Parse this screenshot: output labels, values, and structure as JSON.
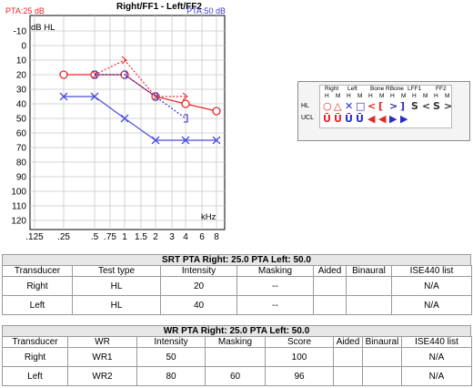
{
  "chart_data": {
    "type": "line",
    "title": "Right/FF1 - Left/FF2",
    "pta_left_label": "PTA:25 dB",
    "pta_right_label": "PTA:50 dB",
    "ylabel": "dB HL",
    "xlabel": "kHz",
    "ylim": [
      -10,
      120
    ],
    "y_ticks": [
      "-10",
      "0",
      "10",
      "20",
      "30",
      "40",
      "50",
      "60",
      "70",
      "80",
      "90",
      "100",
      "110",
      "120"
    ],
    "x_ticks": [
      ".125",
      ".25",
      ".5",
      ".75",
      "1",
      "1.5",
      "2",
      "3",
      "4",
      "6",
      "8"
    ],
    "x": [
      0.125,
      0.25,
      0.5,
      0.75,
      1,
      1.5,
      2,
      3,
      4,
      6,
      8
    ],
    "series": [
      {
        "marker": "circle",
        "color": "#e8262a",
        "style": "solid",
        "x": [
          0.25,
          0.5,
          1,
          2,
          4,
          8
        ],
        "y": [
          20,
          20,
          20,
          35,
          40,
          45
        ]
      },
      {
        "marker": "cross",
        "color": "#4b4be0",
        "style": "solid",
        "x": [
          0.25,
          0.5,
          1,
          2,
          4,
          8
        ],
        "y": [
          35,
          35,
          50,
          65,
          65,
          65
        ]
      },
      {
        "marker": "bone-right",
        "color": "#e8262a",
        "style": "dotted",
        "x": [
          0.5,
          1,
          2,
          4
        ],
        "y": [
          20,
          10,
          35,
          35
        ]
      },
      {
        "marker": "bone-left",
        "color": "#2b2bc8",
        "style": "dotted",
        "x": [
          0.5,
          1,
          2,
          4
        ],
        "y": [
          20,
          20,
          35,
          50
        ]
      }
    ]
  },
  "legend": {
    "headers": [
      "Right",
      "Left",
      "Bone",
      "RBone",
      "LFF1",
      "FF2"
    ],
    "sub": [
      "H",
      "M",
      "H",
      "M",
      "H",
      "M",
      "H",
      "M",
      "H",
      "M",
      "H",
      "M"
    ],
    "row_labels": [
      "HL",
      "UCL"
    ],
    "colors": {
      "right": "#e8262a",
      "left": "#2b2bc8",
      "neutral": "#333333"
    }
  },
  "srt_table": {
    "title": "SRT      PTA Right: 25.0   PTA Left: 50.0",
    "headers": [
      "Transducer",
      "Test type",
      "Intensity",
      "Masking",
      "Aided",
      "Binaural",
      "ISE440 list"
    ],
    "rows": [
      [
        "Right",
        "HL",
        "20",
        "--",
        "",
        "",
        "N/A"
      ],
      [
        "Left",
        "HL",
        "40",
        "--",
        "",
        "",
        "N/A"
      ]
    ]
  },
  "wr_table": {
    "title": "WR      PTA Right: 25.0   PTA Left: 50.0",
    "headers": [
      "Transducer",
      "WR",
      "Intensity",
      "Masking",
      "Score",
      "Aided",
      "Binaural",
      "ISE440 list"
    ],
    "rows": [
      [
        "Right",
        "WR1",
        "50",
        "",
        "100",
        "",
        "",
        "N/A"
      ],
      [
        "Left",
        "WR2",
        "80",
        "60",
        "96",
        "",
        "",
        "N/A"
      ]
    ]
  }
}
